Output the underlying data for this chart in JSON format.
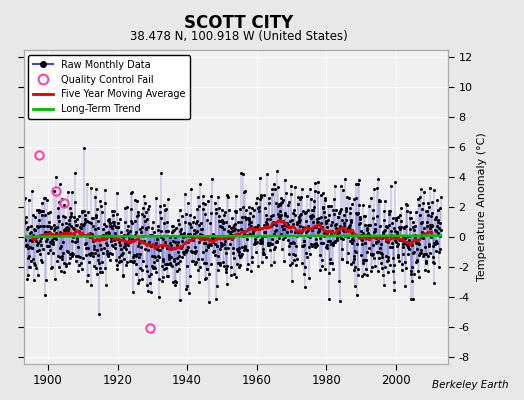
{
  "title": "SCOTT CITY",
  "subtitle": "38.478 N, 100.918 W (United States)",
  "ylabel": "Temperature Anomaly (°C)",
  "watermark": "Berkeley Earth",
  "xlim": [
    1893,
    2015
  ],
  "ylim": [
    -8.5,
    12.5
  ],
  "yticks": [
    -8,
    -6,
    -4,
    -2,
    0,
    2,
    4,
    6,
    8,
    10,
    12
  ],
  "xticks": [
    1900,
    1920,
    1940,
    1960,
    1980,
    2000
  ],
  "bg_color": "#e8e8e8",
  "plot_bg_color": "#f0f0f0",
  "raw_line_color": "#4444cc",
  "raw_dot_color": "#000000",
  "moving_avg_color": "#dd0000",
  "trend_color": "#00bb00",
  "qc_fail_color": "#ff44aa",
  "seed": 42,
  "n_months": 1452,
  "start_year": 1893.0,
  "end_year": 2013.0,
  "noise_std": 1.55,
  "qc_years": [
    1897.5,
    1902.2,
    1904.7,
    1929.3
  ],
  "qc_values": [
    5.5,
    3.1,
    2.3,
    -6.1
  ]
}
